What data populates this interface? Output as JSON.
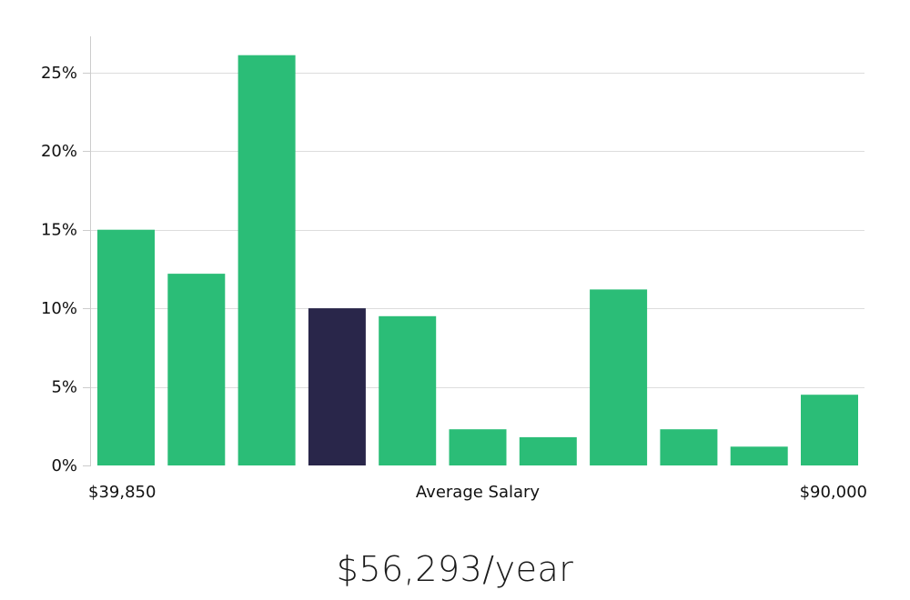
{
  "chart_data": {
    "type": "bar",
    "categories": [
      "1",
      "2",
      "3",
      "4",
      "5",
      "6",
      "7",
      "8",
      "9",
      "10",
      "11"
    ],
    "values": [
      15,
      12.2,
      26.1,
      10,
      9.5,
      2.3,
      1.8,
      11.2,
      2.3,
      1.2,
      4.5
    ],
    "highlight_index": 3,
    "ylim": [
      0,
      27.3
    ],
    "y_ticks": [
      0,
      5,
      10,
      15,
      20,
      25
    ],
    "y_tick_labels": [
      "0%",
      "5%",
      "10%",
      "15%",
      "20%",
      "25%"
    ],
    "x_label_left": "$39,850",
    "xlabel": "Average Salary",
    "x_label_right": "$90,000",
    "grid": true,
    "colors": {
      "bar": "#2bbd77",
      "highlight": "#29264a",
      "grid": "#dddddd",
      "axis": "#cccccc"
    }
  },
  "salary_text": "$56,293/year"
}
